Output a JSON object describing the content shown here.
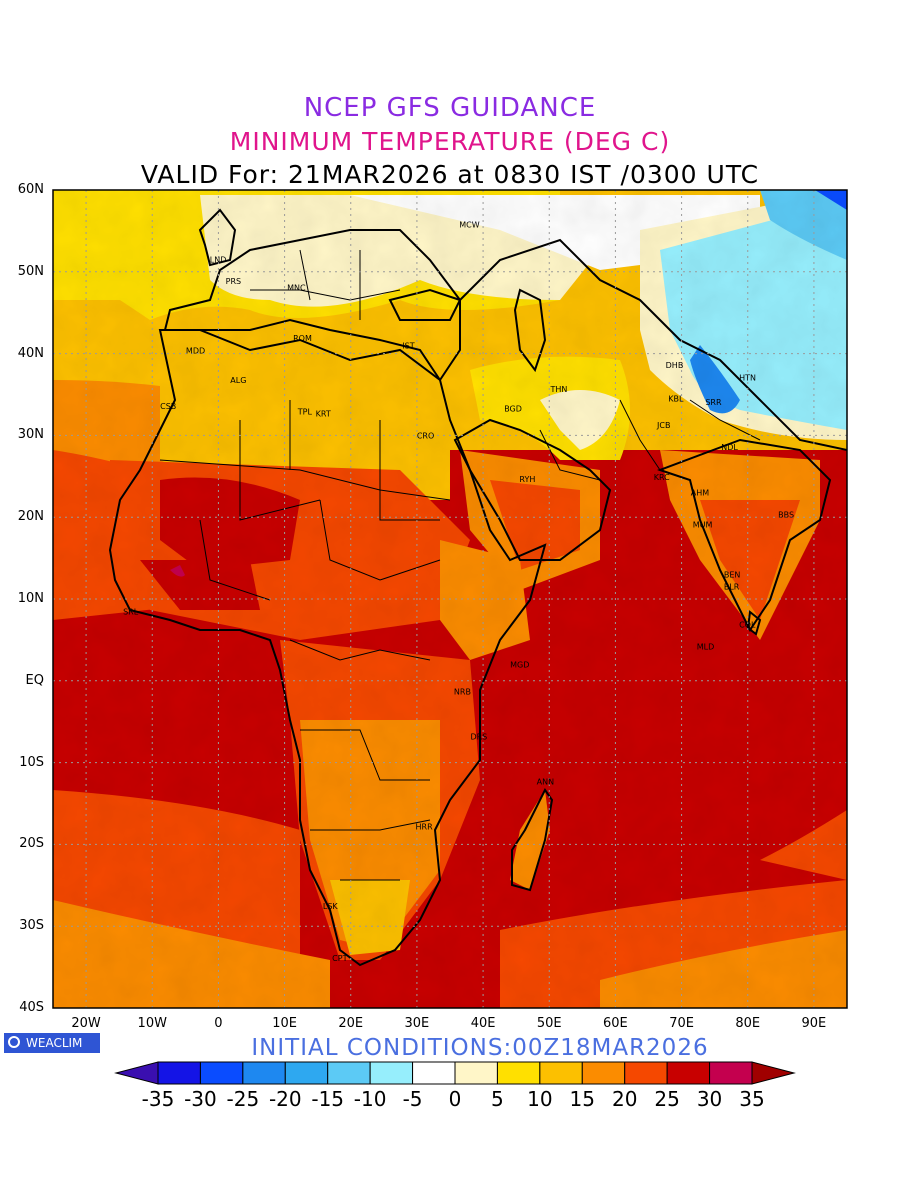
{
  "header": {
    "title": "NCEP GFS GUIDANCE",
    "subtitle": "MINIMUM TEMPERATURE (DEG C)",
    "valid": "VALID For: 21MAR2026 at 0830 IST /0300 UTC"
  },
  "footer": {
    "initial_conditions": "INITIAL CONDITIONS:00Z18MAR2026",
    "brand": "WEACLIM"
  },
  "axes": {
    "lat_labels": [
      "60N",
      "50N",
      "40N",
      "30N",
      "20N",
      "10N",
      "EQ",
      "10S",
      "20S",
      "30S",
      "40S"
    ],
    "lat_values": [
      60,
      50,
      40,
      30,
      20,
      10,
      0,
      -10,
      -20,
      -30,
      -40
    ],
    "lon_labels": [
      "20W",
      "10W",
      "0",
      "10E",
      "20E",
      "30E",
      "40E",
      "50E",
      "60E",
      "70E",
      "80E",
      "90E"
    ],
    "lon_values": [
      -20,
      -10,
      0,
      10,
      20,
      30,
      40,
      50,
      60,
      70,
      80,
      90
    ],
    "lon_range": [
      -25,
      95
    ],
    "lat_range": [
      -40,
      60
    ],
    "grid": true
  },
  "colorbar": {
    "labels": [
      "-35",
      "-30",
      "-25",
      "-20",
      "-15",
      "-10",
      "-5",
      "0",
      "5",
      "10",
      "15",
      "20",
      "25",
      "30",
      "35"
    ],
    "colors": [
      "#3a0fb0",
      "#1414e6",
      "#0a4cff",
      "#1e88f0",
      "#2ea8f0",
      "#5ccaf5",
      "#96eefc",
      "#ffffff",
      "#fff6c8",
      "#ffe000",
      "#fcc000",
      "#fb8c00",
      "#f54800",
      "#c80000",
      "#c4004e",
      "#a00000"
    ]
  },
  "cities": [
    {
      "name": "MCW",
      "lon": 37.6,
      "lat": 55.8
    },
    {
      "name": "LND",
      "lon": -0.1,
      "lat": 51.5
    },
    {
      "name": "PRS",
      "lon": 2.3,
      "lat": 48.9
    },
    {
      "name": "MNC",
      "lon": 11.6,
      "lat": 48.1
    },
    {
      "name": "ROM",
      "lon": 12.5,
      "lat": 41.9
    },
    {
      "name": "MDD",
      "lon": -3.7,
      "lat": 40.4
    },
    {
      "name": "IST",
      "lon": 29.0,
      "lat": 41.0
    },
    {
      "name": "ALG",
      "lon": 3.0,
      "lat": 36.8
    },
    {
      "name": "CSB",
      "lon": -7.6,
      "lat": 33.6
    },
    {
      "name": "TPL",
      "lon": 13.2,
      "lat": 32.9
    },
    {
      "name": "KRT",
      "lon": 15.9,
      "lat": 32.7
    },
    {
      "name": "CRO",
      "lon": 31.2,
      "lat": 30.0
    },
    {
      "name": "BGD",
      "lon": 44.4,
      "lat": 33.3
    },
    {
      "name": "THN",
      "lon": 51.4,
      "lat": 35.7
    },
    {
      "name": "DHB",
      "lon": 68.8,
      "lat": 38.6
    },
    {
      "name": "HTN",
      "lon": 79.9,
      "lat": 37.1
    },
    {
      "name": "KBL",
      "lon": 69.2,
      "lat": 34.5
    },
    {
      "name": "SRR",
      "lon": 74.8,
      "lat": 34.1
    },
    {
      "name": "JCB",
      "lon": 67.5,
      "lat": 31.3
    },
    {
      "name": "NDL",
      "lon": 77.2,
      "lat": 28.6
    },
    {
      "name": "RYH",
      "lon": 46.7,
      "lat": 24.7
    },
    {
      "name": "KRC",
      "lon": 67.0,
      "lat": 24.9
    },
    {
      "name": "AHM",
      "lon": 72.6,
      "lat": 23.0
    },
    {
      "name": "MUM",
      "lon": 72.9,
      "lat": 19.1
    },
    {
      "name": "BBS",
      "lon": 85.8,
      "lat": 20.3
    },
    {
      "name": "BEN",
      "lon": 77.6,
      "lat": 13.0
    },
    {
      "name": "BLR",
      "lon": 77.6,
      "lat": 11.5
    },
    {
      "name": "COL",
      "lon": 79.9,
      "lat": 6.9
    },
    {
      "name": "MLD",
      "lon": 73.5,
      "lat": 4.2
    },
    {
      "name": "MGD",
      "lon": 45.3,
      "lat": 2.0
    },
    {
      "name": "NRB",
      "lon": 36.8,
      "lat": -1.3
    },
    {
      "name": "DRS",
      "lon": 39.3,
      "lat": -6.8
    },
    {
      "name": "ANN",
      "lon": 49.3,
      "lat": -12.3
    },
    {
      "name": "HRR",
      "lon": 31.0,
      "lat": -17.8
    },
    {
      "name": "SRL",
      "lon": -13.2,
      "lat": 8.5
    },
    {
      "name": "LSK",
      "lon": 17.0,
      "lat": -27.5
    },
    {
      "name": "CPT",
      "lon": 18.4,
      "lat": -33.9
    }
  ]
}
